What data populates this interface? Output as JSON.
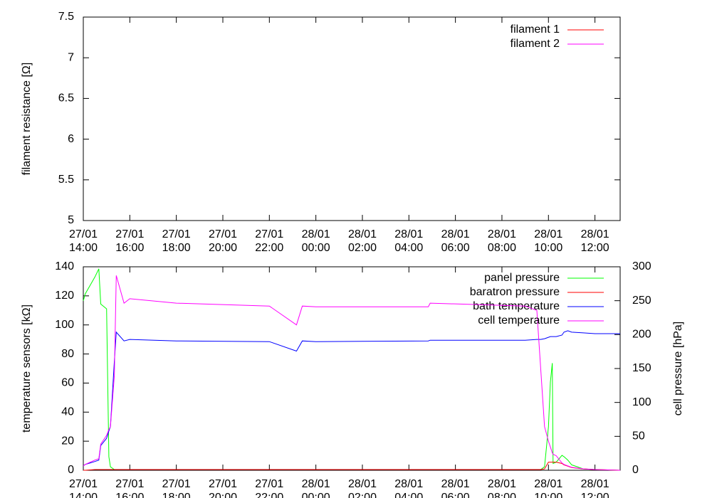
{
  "chart_data": [
    {
      "type": "line",
      "y_label": "filament resistance [Ω]",
      "legend": "top right",
      "xlim": [
        "27/01 14:00",
        "28/01 13:05"
      ],
      "xticks": [
        "27/01 14:00",
        "27/01 16:00",
        "27/01 18:00",
        "27/01 20:00",
        "27/01 22:00",
        "28/01 00:00",
        "28/01 02:00",
        "28/01 04:00",
        "28/01 06:00",
        "28/01 08:00",
        "28/01 10:00",
        "28/01 12:00"
      ],
      "ylim": [
        5,
        7.5
      ],
      "yticks": [
        5,
        5.5,
        6,
        6.5,
        7,
        7.5
      ],
      "x": [],
      "series": [
        {
          "name": "filament 1",
          "color": "#ff0000",
          "values": []
        },
        {
          "name": "filament 2",
          "color": "#ff00ff",
          "values": []
        }
      ]
    },
    {
      "type": "line",
      "y_label": "temperature sensors [kΩ]",
      "y2_label": "cell pressure [hPa]",
      "legend": "top right",
      "xlim": [
        "27/01 14:00",
        "28/01 13:05"
      ],
      "xticks": [
        "27/01 14:00",
        "27/01 16:00",
        "27/01 18:00",
        "27/01 20:00",
        "27/01 22:00",
        "28/01 00:00",
        "28/01 02:00",
        "28/01 04:00",
        "28/01 06:00",
        "28/01 08:00",
        "28/01 10:00",
        "28/01 12:00"
      ],
      "ylim": [
        0,
        140
      ],
      "yticks": [
        0,
        20,
        40,
        60,
        80,
        100,
        120,
        140
      ],
      "y2lim": [
        0,
        300
      ],
      "y2ticks": [
        0,
        50,
        100,
        150,
        200,
        250,
        300
      ],
      "x": [
        "27/01 14:00",
        "27/01 14:05",
        "27/01 14:30",
        "27/01 14:40",
        "27/01 14:45",
        "27/01 15:00",
        "27/01 15:06",
        "27/01 15:10",
        "27/01 15:20",
        "27/01 15:25",
        "27/01 15:45",
        "27/01 16:00",
        "27/01 18:00",
        "27/01 22:00",
        "27/01 23:10",
        "27/01 23:25",
        "28/01 00:00",
        "28/01 04:50",
        "28/01 04:55",
        "28/01 09:00",
        "28/01 09:30",
        "28/01 09:40",
        "28/01 09:50",
        "28/01 10:00",
        "28/01 10:05",
        "28/01 10:10",
        "28/01 10:12",
        "28/01 10:20",
        "28/01 10:35",
        "28/01 10:40",
        "28/01 10:50",
        "28/01 11:00",
        "28/01 11:30",
        "28/01 12:00",
        "28/01 13:05"
      ],
      "series": [
        {
          "name": "panel pressure",
          "color": "#00ff00",
          "axis": "y2",
          "values": [
            250,
            260,
            285,
            297,
            245,
            238,
            20,
            5,
            1,
            1,
            1,
            1,
            1,
            1,
            1,
            1,
            1,
            1,
            1,
            1,
            1,
            1,
            5,
            64,
            130,
            158,
            10,
            12,
            22,
            20,
            15,
            8,
            2,
            1,
            0
          ]
        },
        {
          "name": "baratron pressure",
          "color": "#ff0000",
          "axis": "y2",
          "values": [
            0,
            0,
            1,
            1,
            1,
            1,
            1,
            1,
            1,
            1,
            1,
            1,
            1,
            1,
            1,
            1,
            1,
            1,
            1,
            1,
            1,
            1,
            2,
            12,
            12,
            12,
            12,
            12,
            10,
            8,
            6,
            4,
            2,
            1,
            0
          ]
        },
        {
          "name": "bath temperature",
          "color": "#0000ff",
          "values": [
            3,
            4,
            6,
            7,
            17,
            22,
            27,
            30,
            75,
            95,
            89,
            90,
            89,
            88.5,
            82,
            89,
            88.5,
            89,
            89.5,
            89.5,
            90,
            90,
            90.5,
            91.5,
            92,
            92,
            92,
            92,
            93,
            95,
            96,
            95,
            94.5,
            94,
            94
          ]
        },
        {
          "name": "cell temperature",
          "color": "#ff00ff",
          "values": [
            3,
            4,
            7,
            8,
            18,
            24,
            28,
            30,
            65,
            134,
            115,
            118,
            115,
            113,
            100,
            113,
            112.5,
            112.5,
            115,
            113,
            110,
            70,
            30,
            20,
            16,
            12,
            11,
            10,
            5,
            4,
            3,
            2,
            1,
            0.5,
            0
          ]
        }
      ]
    }
  ]
}
